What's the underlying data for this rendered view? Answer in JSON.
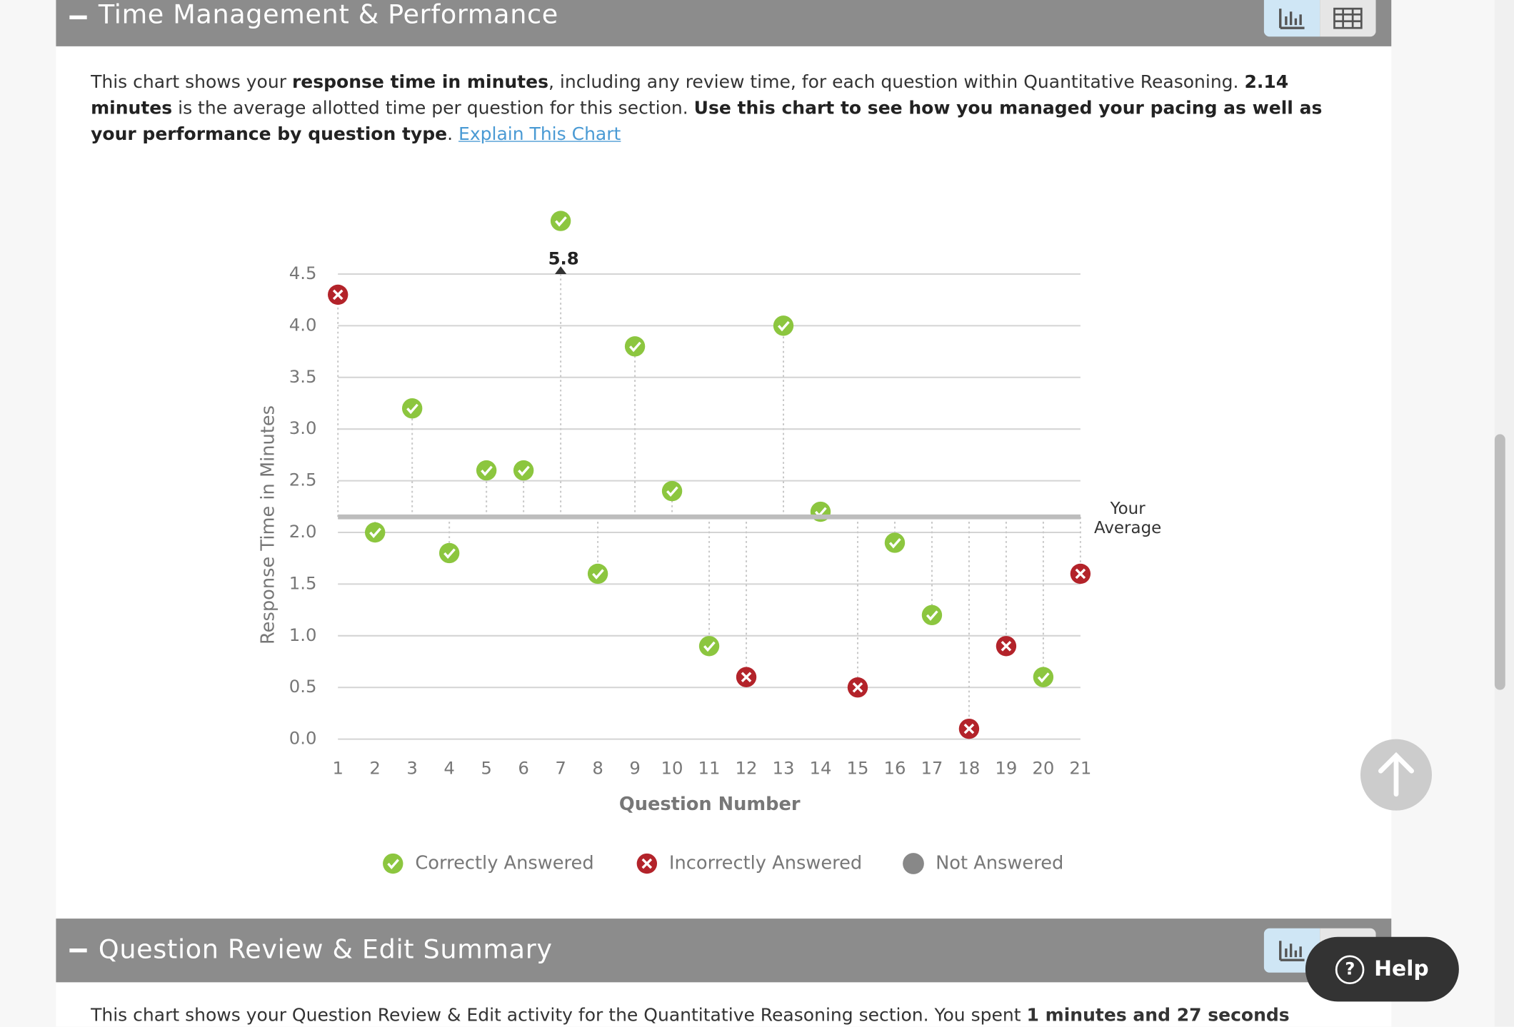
{
  "header": {
    "title": "Time Management & Performance"
  },
  "description": [
    "This chart shows your ",
    "response time in minutes",
    ", including any review time, for each question within Quantitative Reasoning. ",
    "2.14 minutes",
    " is the average allotted time per question for this section. ",
    "Use this chart to see how you managed your pacing as well as your performance by question type",
    ". "
  ],
  "link": "Explain This Chart",
  "chart_data": {
    "type": "lollipop",
    "categories": [
      "1",
      "2",
      "3",
      "4",
      "5",
      "6",
      "7",
      "8",
      "9",
      "10",
      "11",
      "12",
      "13",
      "14",
      "15",
      "16",
      "17",
      "18",
      "19",
      "20",
      "21"
    ],
    "series": [
      {
        "name": "Correctly Answered",
        "color": "#8cc63f",
        "values": [
          null,
          2.0,
          3.2,
          1.8,
          2.6,
          2.6,
          5.8,
          1.6,
          3.8,
          2.4,
          0.9,
          null,
          4.0,
          2.2,
          null,
          1.9,
          1.2,
          null,
          null,
          0.6,
          null
        ],
        "value_labels": [
          null,
          null,
          null,
          null,
          null,
          null,
          "5.8",
          null,
          null,
          null,
          null,
          null,
          null,
          null,
          null,
          null,
          null,
          null,
          null,
          null,
          null
        ]
      },
      {
        "name": "Incorrectly Answered",
        "color": "#b3232a",
        "values": [
          4.3,
          null,
          null,
          null,
          null,
          null,
          null,
          null,
          null,
          null,
          null,
          0.6,
          null,
          null,
          0.5,
          null,
          null,
          0.1,
          0.9,
          null,
          1.6
        ]
      },
      {
        "name": "Not Answered",
        "color": "#888888",
        "values": [
          null,
          null,
          null,
          null,
          null,
          null,
          null,
          null,
          null,
          null,
          null,
          null,
          null,
          null,
          null,
          null,
          null,
          null,
          null,
          null,
          null
        ]
      }
    ],
    "average": 2.15,
    "average_label": [
      "Your",
      "Average"
    ],
    "ylim": [
      0,
      4.5
    ],
    "yticks": [
      {
        "value": 0,
        "label": "0.0"
      },
      0.5,
      {
        "value": 1,
        "label": "1.0"
      },
      1.5,
      {
        "value": 2,
        "label": "2.0"
      },
      2.5,
      {
        "value": 3,
        "label": "3.0"
      },
      3.5,
      {
        "value": 4,
        "label": "4.0"
      },
      4.5
    ],
    "y_label": "Response Time in Minutes",
    "x_label": "Question Number",
    "grid": true
  },
  "next_section": {
    "title": "Question Review & Edit Summary",
    "text": [
      "This chart shows your Question Review & Edit activity for the Quantitative Reasoning section. You spent ",
      "1 minutes and 27 seconds"
    ]
  },
  "help": "Help"
}
